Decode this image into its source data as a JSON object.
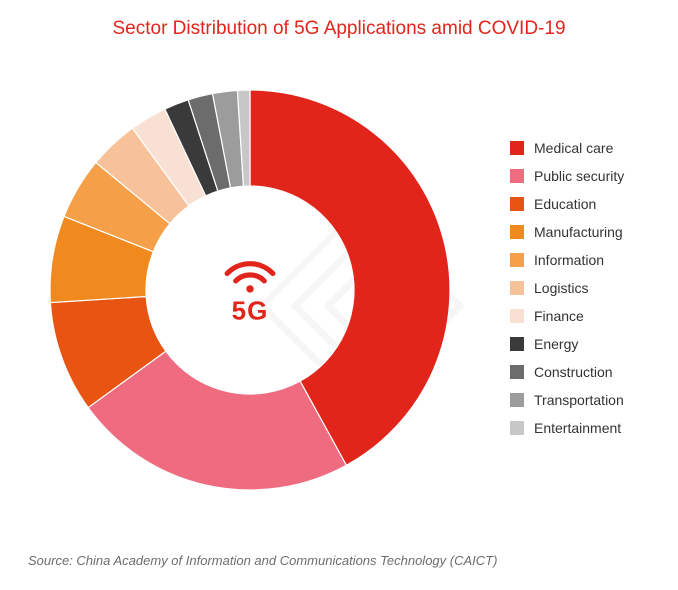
{
  "title": "Sector Distribution of 5G Applications amid COVID-19",
  "title_color": "#e1251b",
  "title_fontsize": 19,
  "source": "Source: China Academy of Information and Communications Technology (CAICT)",
  "source_color": "#6d6d6d",
  "source_fontsize": 13,
  "background_color": "#ffffff",
  "chart": {
    "type": "donut",
    "inner_radius_ratio": 0.52,
    "outer_radius": 200,
    "start_angle_deg": -90,
    "direction": "clockwise",
    "center_label": "5G",
    "center_label_color": "#e1251b",
    "center_icon": "wifi-icon",
    "slices": [
      {
        "label": "Medical care",
        "value": 42,
        "color": "#e1251b"
      },
      {
        "label": "Public security",
        "value": 23,
        "color": "#ee6b80"
      },
      {
        "label": "Education",
        "value": 9,
        "color": "#e85412"
      },
      {
        "label": "Manufacturing",
        "value": 7,
        "color": "#f08a1e"
      },
      {
        "label": "Information",
        "value": 5,
        "color": "#f5a048"
      },
      {
        "label": "Logistics",
        "value": 4,
        "color": "#f7c199"
      },
      {
        "label": "Finance",
        "value": 3,
        "color": "#f8e1d2"
      },
      {
        "label": "Energy",
        "value": 2,
        "color": "#3a3a3a"
      },
      {
        "label": "Construction",
        "value": 2,
        "color": "#6c6c6c"
      },
      {
        "label": "Transportation",
        "value": 2,
        "color": "#9c9c9c"
      },
      {
        "label": "Entertainment",
        "value": 1,
        "color": "#c7c7c7"
      }
    ]
  },
  "legend": {
    "swatch_size": 14,
    "label_fontsize": 14,
    "label_color": "#333333",
    "gap": 12
  }
}
